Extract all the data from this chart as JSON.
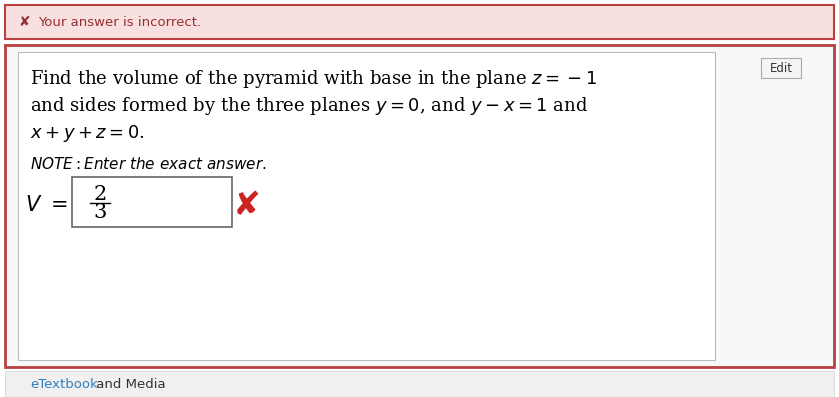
{
  "error_banner_text": "Your answer is incorrect.",
  "error_banner_bg": "#f9e0e0",
  "error_banner_border": "#b94040",
  "error_x_color": "#943030",
  "main_border_color": "#b94040",
  "main_bg": "#ffffff",
  "answer_box_border": "#666666",
  "answer_box_bg": "#ffffff",
  "wrong_x_color": "#cc2222",
  "edit_button_text": "Edit",
  "edit_button_border": "#aaaaaa",
  "etextbook_link_color": "#3080c0",
  "etextbook_bg": "#f0f0f0",
  "fig_bg": "#ffffff",
  "fig_width": 8.39,
  "fig_height": 3.97,
  "fig_dpi": 100
}
